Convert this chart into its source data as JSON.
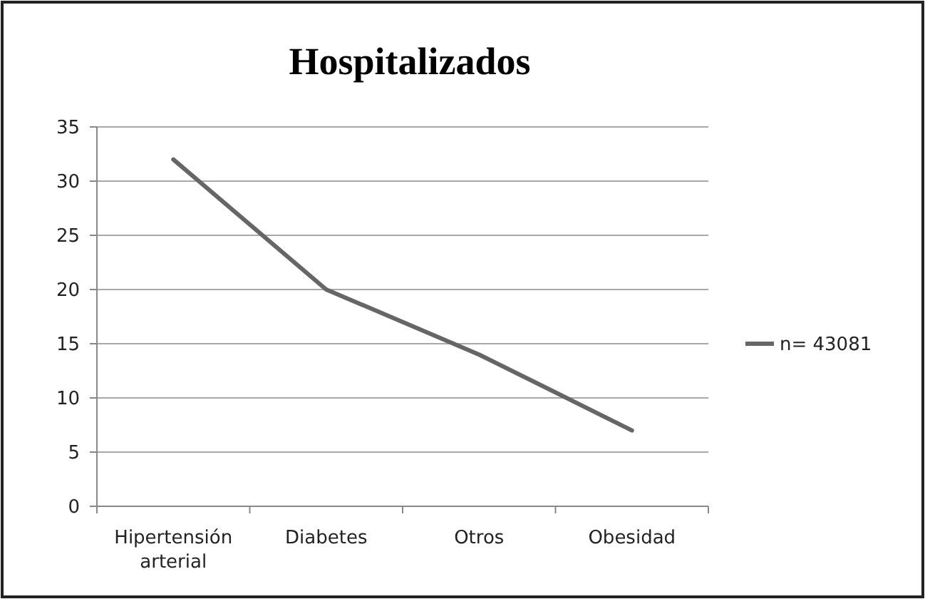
{
  "chart_data": {
    "type": "line",
    "title": "Hospitalizados",
    "categories": [
      "Hipertensión arterial",
      "Diabetes",
      "Otros",
      "Obesidad"
    ],
    "series": [
      {
        "name": "n= 43081",
        "color": "#666666",
        "values": [
          32,
          20,
          14,
          7
        ]
      }
    ],
    "ylim": [
      0,
      35
    ],
    "yticks": [
      0,
      5,
      10,
      15,
      20,
      25,
      30,
      35
    ],
    "grid": "y",
    "legend": "right",
    "marker": "none",
    "line_style": "solid"
  }
}
